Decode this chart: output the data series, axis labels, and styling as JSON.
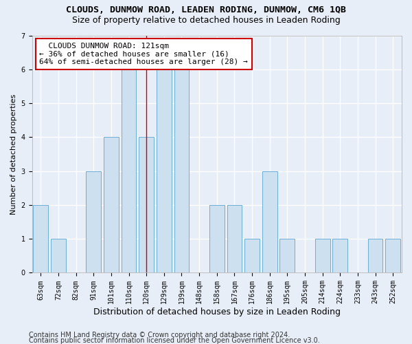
{
  "title": "CLOUDS, DUNMOW ROAD, LEADEN RODING, DUNMOW, CM6 1QB",
  "subtitle": "Size of property relative to detached houses in Leaden Roding",
  "xlabel": "Distribution of detached houses by size in Leaden Roding",
  "ylabel": "Number of detached properties",
  "categories": [
    "63sqm",
    "72sqm",
    "82sqm",
    "91sqm",
    "101sqm",
    "110sqm",
    "120sqm",
    "129sqm",
    "139sqm",
    "148sqm",
    "158sqm",
    "167sqm",
    "176sqm",
    "186sqm",
    "195sqm",
    "205sqm",
    "214sqm",
    "224sqm",
    "233sqm",
    "243sqm",
    "252sqm"
  ],
  "values": [
    2,
    1,
    0,
    3,
    4,
    6,
    4,
    6,
    6,
    0,
    2,
    2,
    1,
    3,
    1,
    0,
    1,
    1,
    0,
    1,
    1
  ],
  "bar_color": "#cce0f0",
  "bar_edge_color": "#6baed6",
  "highlight_index": 6,
  "highlight_line_color": "#cc0000",
  "annotation_line1": "  CLOUDS DUNMOW ROAD: 121sqm",
  "annotation_line2": "← 36% of detached houses are smaller (16)",
  "annotation_line3": "64% of semi-detached houses are larger (28) →",
  "annotation_box_color": "#ffffff",
  "annotation_box_edge_color": "#cc0000",
  "ylim": [
    0,
    7
  ],
  "yticks": [
    0,
    1,
    2,
    3,
    4,
    5,
    6,
    7
  ],
  "background_color": "#e8eef8",
  "grid_color": "#ffffff",
  "footer1": "Contains HM Land Registry data © Crown copyright and database right 2024.",
  "footer2": "Contains public sector information licensed under the Open Government Licence v3.0.",
  "title_fontsize": 9.5,
  "subtitle_fontsize": 9,
  "xlabel_fontsize": 9,
  "ylabel_fontsize": 8,
  "tick_fontsize": 7,
  "annotation_fontsize": 8,
  "footer_fontsize": 7
}
